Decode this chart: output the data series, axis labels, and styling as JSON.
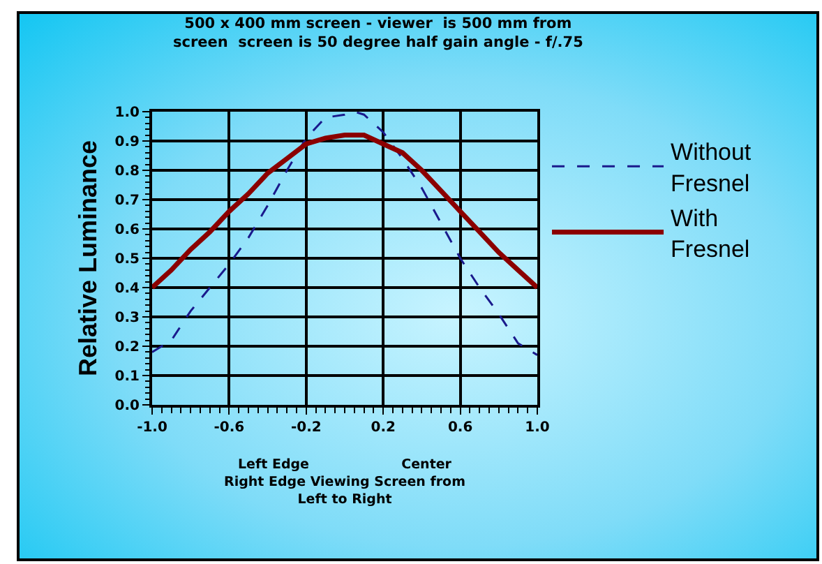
{
  "chart_data": {
    "type": "line",
    "title": "500 x 400 mm screen - viewer  is 500 mm from\nscreen  screen is 50 degree half gain angle - f/.75",
    "xlabel": "Left Edge                    Center\nRight Edge Viewing Screen from\nLeft to Right",
    "ylabel": "Relative Luminance",
    "x": [
      -1,
      -0.9,
      -0.8,
      -0.7,
      -0.6,
      -0.5,
      -0.4,
      -0.3,
      -0.2,
      -0.1,
      0,
      0.05,
      0.1,
      0.2,
      0.3,
      0.4,
      0.5,
      0.6,
      0.7,
      0.8,
      0.9,
      1
    ],
    "series": [
      {
        "name": "Without Fresnel",
        "color": "#1a1a8c",
        "line_style": "dashed",
        "values": [
          0.18,
          0.22,
          0.32,
          0.4,
          0.48,
          0.57,
          0.68,
          0.8,
          0.91,
          0.98,
          0.99,
          1.0,
          0.99,
          0.93,
          0.84,
          0.74,
          0.62,
          0.5,
          0.4,
          0.31,
          0.21,
          0.17
        ]
      },
      {
        "name": "With Fresnel",
        "color": "#8b0000",
        "line_style": "solid",
        "values": [
          0.4,
          0.46,
          0.53,
          0.59,
          0.66,
          0.72,
          0.79,
          0.84,
          0.89,
          0.91,
          0.92,
          0.92,
          0.92,
          0.89,
          0.86,
          0.8,
          0.73,
          0.66,
          0.59,
          0.52,
          0.46,
          0.4
        ]
      }
    ],
    "xlim": [
      -1,
      1
    ],
    "xticks": [
      {
        "value": -1,
        "label": "-1.0"
      },
      -0.6,
      -0.2,
      0.2,
      0.6,
      {
        "value": 1,
        "label": "1.0"
      }
    ],
    "ylim": [
      0,
      1
    ],
    "yticks": [
      {
        "value": 0,
        "label": "0.0"
      },
      0.1,
      0.2,
      0.3,
      0.4,
      0.5,
      0.6,
      0.7,
      0.8,
      0.9,
      {
        "value": 1,
        "label": "1.0"
      }
    ],
    "grid": true,
    "legend": "right",
    "marker": "none"
  }
}
